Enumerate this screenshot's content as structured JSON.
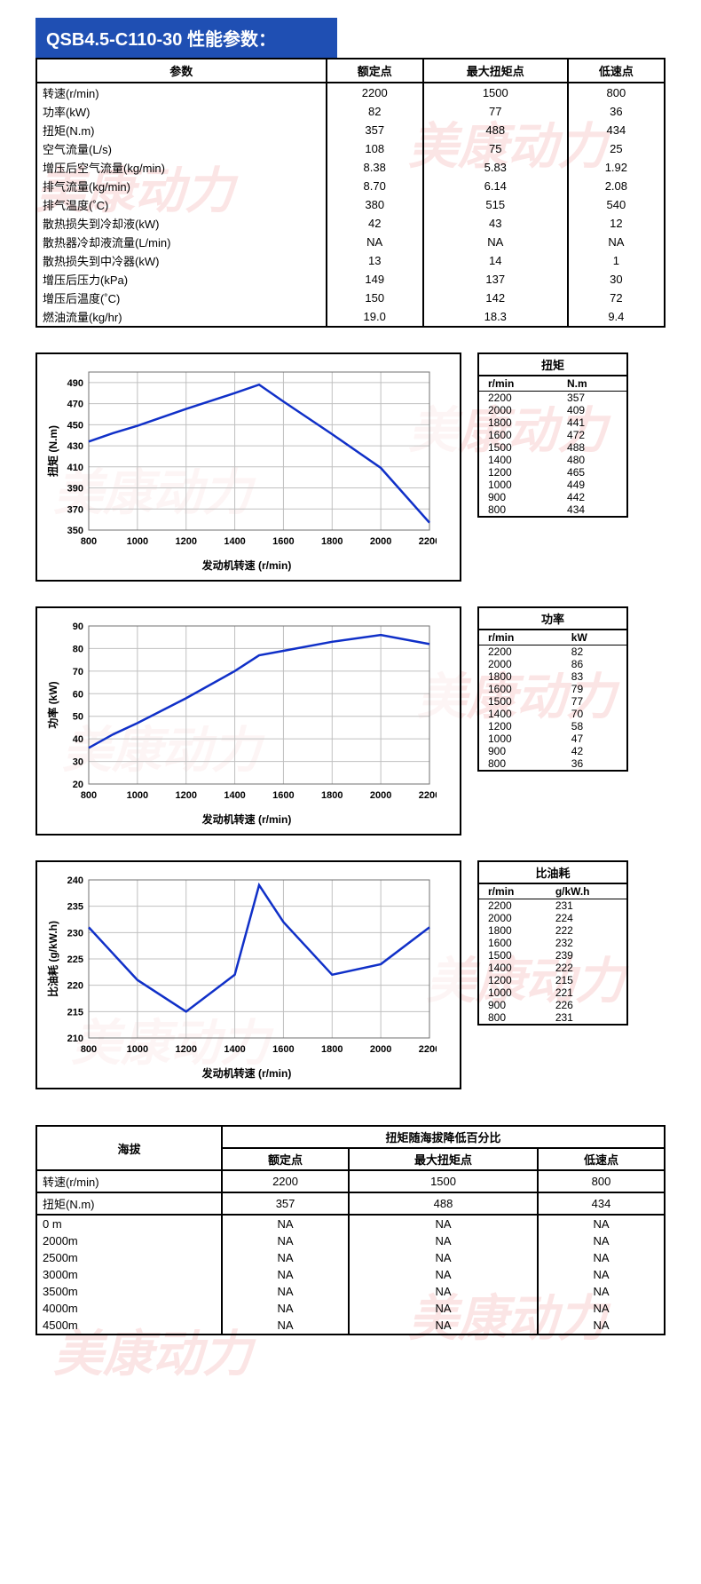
{
  "watermark_text": "美康动力",
  "title": "QSB4.5-C110-30 性能参数：",
  "param_table": {
    "headers": [
      "参数",
      "额定点",
      "最大扭矩点",
      "低速点"
    ],
    "rows": [
      [
        "转速(r/min)",
        "2200",
        "1500",
        "800"
      ],
      [
        "功率(kW)",
        "82",
        "77",
        "36"
      ],
      [
        "扭矩(N.m)",
        "357",
        "488",
        "434"
      ],
      [
        "空气流量(L/s)",
        "108",
        "75",
        "25"
      ],
      [
        "增压后空气流量(kg/min)",
        "8.38",
        "5.83",
        "1.92"
      ],
      [
        "排气流量(kg/min)",
        "8.70",
        "6.14",
        "2.08"
      ],
      [
        "排气温度(˚C)",
        "380",
        "515",
        "540"
      ],
      [
        "散热损失到冷却液(kW)",
        "42",
        "43",
        "12"
      ],
      [
        "散热器冷却液流量(L/min)",
        "NA",
        "NA",
        "NA"
      ],
      [
        "散热损失到中冷器(kW)",
        "13",
        "14",
        "1"
      ],
      [
        "增压后压力(kPa)",
        "149",
        "137",
        "30"
      ],
      [
        "增压后温度(˚C)",
        "150",
        "142",
        "72"
      ],
      [
        "燃油流量(kg/hr)",
        "19.0",
        "18.3",
        "9.4"
      ]
    ]
  },
  "charts": [
    {
      "title": "扭矩",
      "side_headers": [
        "r/min",
        "N.m"
      ],
      "ylabel": "扭矩 (N.m)",
      "xlabel": "发动机转速  (r/min)",
      "line_color": "#1030c8",
      "grid_color": "#c0c0c0",
      "tick_fontsize": 11,
      "x": [
        800,
        900,
        1000,
        1200,
        1400,
        1500,
        1600,
        1800,
        2000,
        2200
      ],
      "y": [
        434,
        442,
        449,
        465,
        480,
        488,
        472,
        441,
        409,
        357
      ],
      "xlim": [
        800,
        2200
      ],
      "xticks": [
        800,
        1000,
        1200,
        1400,
        1600,
        1800,
        2000,
        2200
      ],
      "ylim": [
        350,
        500
      ],
      "yticks": [
        350,
        370,
        390,
        410,
        430,
        450,
        470,
        490
      ],
      "side_rows": [
        [
          "2200",
          "357"
        ],
        [
          "2000",
          "409"
        ],
        [
          "1800",
          "441"
        ],
        [
          "1600",
          "472"
        ],
        [
          "1500",
          "488"
        ],
        [
          "1400",
          "480"
        ],
        [
          "1200",
          "465"
        ],
        [
          "1000",
          "449"
        ],
        [
          "900",
          "442"
        ],
        [
          "800",
          "434"
        ]
      ]
    },
    {
      "title": "功率",
      "side_headers": [
        "r/min",
        "kW"
      ],
      "ylabel": "功率 (kW)",
      "xlabel": "发动机转速  (r/min)",
      "line_color": "#1030c8",
      "grid_color": "#c0c0c0",
      "tick_fontsize": 11,
      "x": [
        800,
        900,
        1000,
        1200,
        1400,
        1500,
        1600,
        1800,
        2000,
        2200
      ],
      "y": [
        36,
        42,
        47,
        58,
        70,
        77,
        79,
        83,
        86,
        82
      ],
      "xlim": [
        800,
        2200
      ],
      "xticks": [
        800,
        1000,
        1200,
        1400,
        1600,
        1800,
        2000,
        2200
      ],
      "ylim": [
        20,
        90
      ],
      "yticks": [
        20,
        30,
        40,
        50,
        60,
        70,
        80,
        90
      ],
      "side_rows": [
        [
          "2200",
          "82"
        ],
        [
          "2000",
          "86"
        ],
        [
          "1800",
          "83"
        ],
        [
          "1600",
          "79"
        ],
        [
          "1500",
          "77"
        ],
        [
          "1400",
          "70"
        ],
        [
          "1200",
          "58"
        ],
        [
          "1000",
          "47"
        ],
        [
          "900",
          "42"
        ],
        [
          "800",
          "36"
        ]
      ]
    },
    {
      "title": "比油耗",
      "side_headers": [
        "r/min",
        "g/kW.h"
      ],
      "ylabel": "比油耗 (g/kW.h)",
      "xlabel": "发动机转速  (r/min)",
      "line_color": "#1030c8",
      "grid_color": "#c0c0c0",
      "tick_fontsize": 11,
      "x": [
        800,
        900,
        1000,
        1200,
        1400,
        1500,
        1600,
        1800,
        2000,
        2200
      ],
      "y": [
        231,
        226,
        221,
        215,
        222,
        239,
        232,
        222,
        224,
        231
      ],
      "xlim": [
        800,
        2200
      ],
      "xticks": [
        800,
        1000,
        1200,
        1400,
        1600,
        1800,
        2000,
        2200
      ],
      "ylim": [
        210,
        240
      ],
      "yticks": [
        210,
        215,
        220,
        225,
        230,
        235,
        240
      ],
      "side_rows": [
        [
          "2200",
          "231"
        ],
        [
          "2000",
          "224"
        ],
        [
          "1800",
          "222"
        ],
        [
          "1600",
          "232"
        ],
        [
          "1500",
          "239"
        ],
        [
          "1400",
          "222"
        ],
        [
          "1200",
          "215"
        ],
        [
          "1000",
          "221"
        ],
        [
          "900",
          "226"
        ],
        [
          "800",
          "231"
        ]
      ]
    }
  ],
  "alt_table": {
    "main_header": "扭矩随海拔降低百分比",
    "row_header": "海拔",
    "sub_headers": [
      "额定点",
      "最大扭矩点",
      "低速点"
    ],
    "top_rows": [
      [
        "转速(r/min)",
        "2200",
        "1500",
        "800"
      ],
      [
        "扭矩(N.m)",
        "357",
        "488",
        "434"
      ]
    ],
    "rows": [
      [
        "0 m",
        "NA",
        "NA",
        "NA"
      ],
      [
        "2000m",
        "NA",
        "NA",
        "NA"
      ],
      [
        "2500m",
        "NA",
        "NA",
        "NA"
      ],
      [
        "3000m",
        "NA",
        "NA",
        "NA"
      ],
      [
        "3500m",
        "NA",
        "NA",
        "NA"
      ],
      [
        "4000m",
        "NA",
        "NA",
        "NA"
      ],
      [
        "4500m",
        "NA",
        "NA",
        "NA"
      ]
    ]
  }
}
